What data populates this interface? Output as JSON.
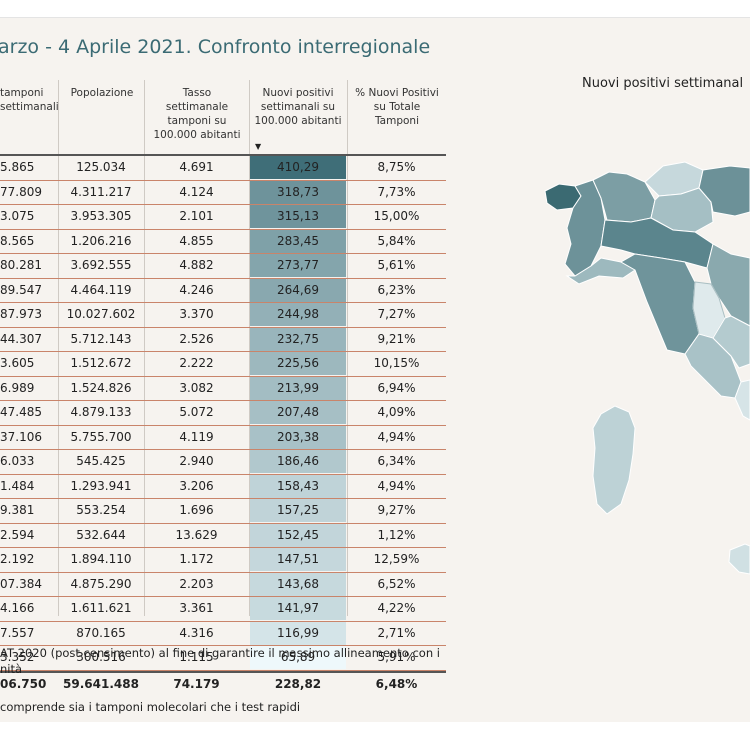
{
  "title": "arzo - 4 Aprile 2021. Confronto interregionale",
  "headers": [
    "tamponi settimanali",
    "Popolazione",
    "Tasso settimanale tamponi su 100.000 abitanti",
    "Nuovi positivi settimanali su 100.000 abitanti",
    "% Nuovi Positivi su Totale Tamponi"
  ],
  "rows": [
    [
      "5.865",
      "125.034",
      "4.691",
      "410,29",
      "8,75%"
    ],
    [
      "77.809",
      "4.311.217",
      "4.124",
      "318,73",
      "7,73%"
    ],
    [
      "3.075",
      "3.953.305",
      "2.101",
      "315,13",
      "15,00%"
    ],
    [
      "8.565",
      "1.206.216",
      "4.855",
      "283,45",
      "5,84%"
    ],
    [
      "80.281",
      "3.692.555",
      "4.882",
      "273,77",
      "5,61%"
    ],
    [
      "89.547",
      "4.464.119",
      "4.246",
      "264,69",
      "6,23%"
    ],
    [
      "87.973",
      "10.027.602",
      "3.370",
      "244,98",
      "7,27%"
    ],
    [
      "44.307",
      "5.712.143",
      "2.526",
      "232,75",
      "9,21%"
    ],
    [
      "3.605",
      "1.512.672",
      "2.222",
      "225,56",
      "10,15%"
    ],
    [
      "6.989",
      "1.524.826",
      "3.082",
      "213,99",
      "6,94%"
    ],
    [
      "47.485",
      "4.879.133",
      "5.072",
      "207,48",
      "4,09%"
    ],
    [
      "37.106",
      "5.755.700",
      "4.119",
      "203,38",
      "4,94%"
    ],
    [
      "6.033",
      "545.425",
      "2.940",
      "186,46",
      "6,34%"
    ],
    [
      "1.484",
      "1.293.941",
      "3.206",
      "158,43",
      "4,94%"
    ],
    [
      "9.381",
      "553.254",
      "1.696",
      "157,25",
      "9,27%"
    ],
    [
      "2.594",
      "532.644",
      "13.629",
      "152,45",
      "1,12%"
    ],
    [
      "2.192",
      "1.894.110",
      "1.172",
      "147,51",
      "12,59%"
    ],
    [
      "07.384",
      "4.875.290",
      "2.203",
      "143,68",
      "6,52%"
    ],
    [
      "4.166",
      "1.611.621",
      "3.361",
      "141,97",
      "4,22%"
    ],
    [
      "7.557",
      "870.165",
      "4.316",
      "116,99",
      "2,71%"
    ],
    [
      "3.352",
      "300.516",
      "1.115",
      "65,89",
      "5,91%"
    ]
  ],
  "positivi_values": [
    410.29,
    318.73,
    315.13,
    283.45,
    273.77,
    264.69,
    244.98,
    232.75,
    225.56,
    213.99,
    207.48,
    203.38,
    186.46,
    158.43,
    157.25,
    152.45,
    147.51,
    143.68,
    141.97,
    116.99,
    65.89
  ],
  "total": [
    "06.750",
    "59.641.488",
    "74.179",
    "228,82",
    "6,48%"
  ],
  "heat_colors": {
    "high": "#3f6e78",
    "low": "#eef8fb"
  },
  "notes": [
    "AT 2020 (post censimento) al fine di garantire il massimo allineamento con i",
    "nità",
    "comprende sia i tamponi molecolari che i test rapidi"
  ],
  "map_title": "Nuovi positivi settimanal"
}
